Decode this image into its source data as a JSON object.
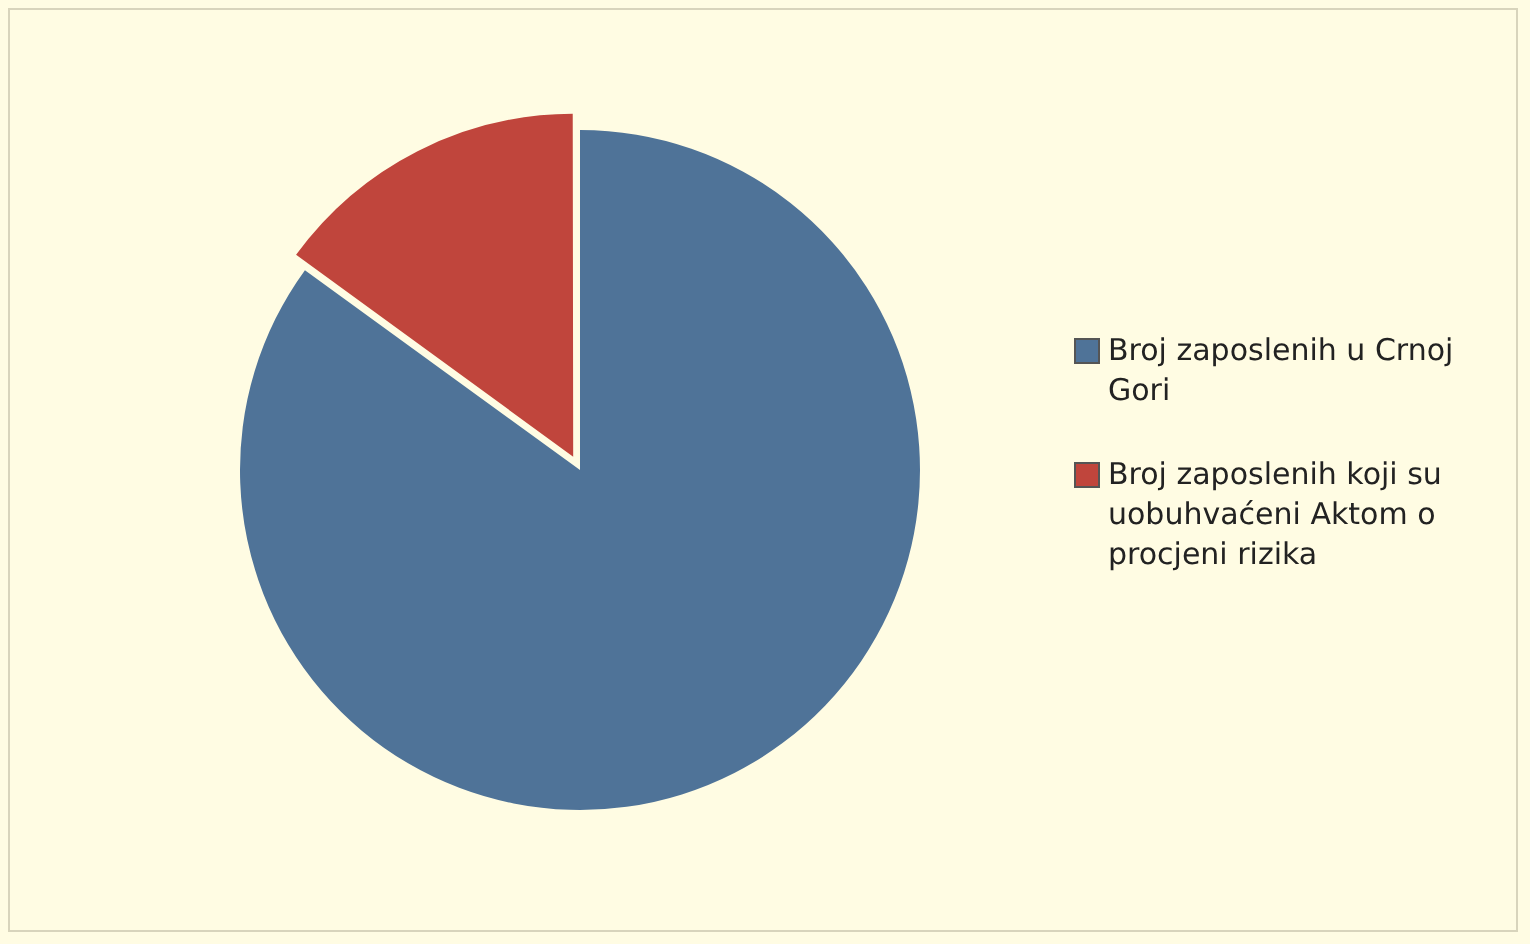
{
  "chart_data": {
    "type": "pie",
    "categories": [
      "Broj zaposlenih u Crnoj Gori",
      "Broj zaposlenih koji su uobuhvaćeni Aktom o procjeni rizika"
    ],
    "values": [
      85,
      15
    ],
    "colors": [
      "#4f7398",
      "#c0453c"
    ],
    "legend": "right"
  }
}
